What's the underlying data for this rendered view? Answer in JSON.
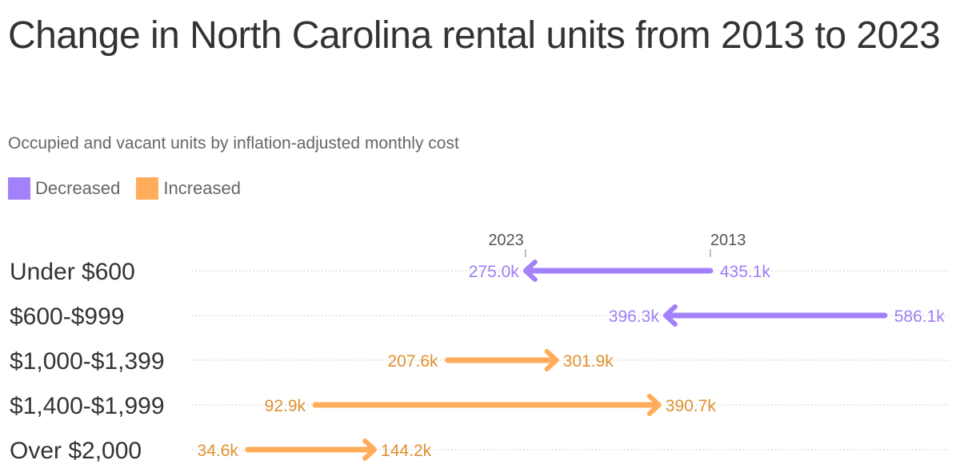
{
  "chart_data": {
    "type": "arrow",
    "title": "Change in North Carolina rental units from 2013 to 2023",
    "subtitle": "Occupied and vacant units by inflation-adjusted monthly cost",
    "legend": [
      {
        "label": "Decreased",
        "color": "#A281FB"
      },
      {
        "label": "Increased",
        "color": "#FFAD5B"
      }
    ],
    "legend_placement": "top-left",
    "header_labels": {
      "start": "2013",
      "end": "2023"
    },
    "unit": "thousands of units",
    "xlim": [
      0,
      642
    ],
    "categories": [
      "Under $600",
      "$600-$999",
      "$1,000-$1,399",
      "$1,400-$1,999",
      "Over $2,000"
    ],
    "series": [
      {
        "name": "2013",
        "values": [
          435.1,
          586.1,
          207.6,
          92.9,
          34.6
        ],
        "labels": [
          "435.1k",
          "586.1k",
          "207.6k",
          "92.9k",
          "34.6k"
        ]
      },
      {
        "name": "2023",
        "values": [
          275.0,
          396.3,
          301.9,
          390.7,
          144.2
        ],
        "labels": [
          "275.0k",
          "396.3k",
          "301.9k",
          "390.7k",
          "144.2k"
        ]
      }
    ],
    "colors": {
      "decreased": "#A281FB",
      "increased": "#FFAD5B",
      "decreased_text": "#A07EF5",
      "increased_text": "#E0912F"
    }
  }
}
